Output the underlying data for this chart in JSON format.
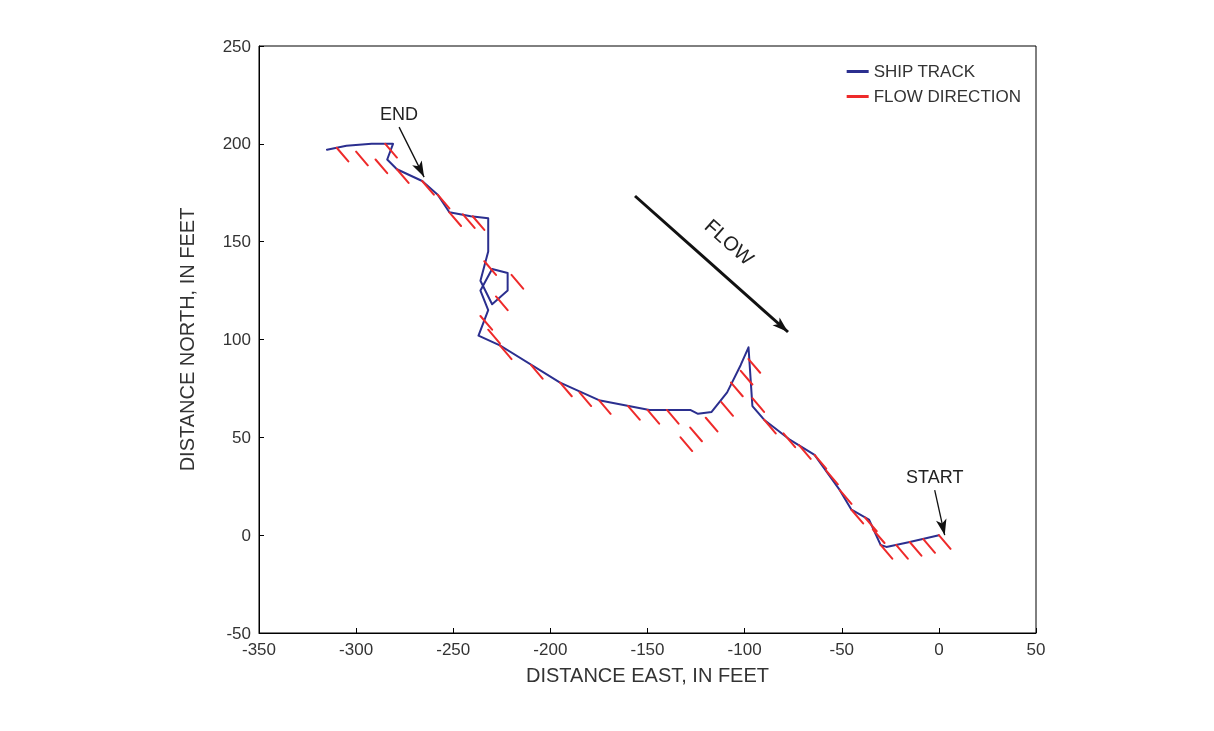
{
  "chart_data": {
    "type": "line",
    "xlabel": "DISTANCE EAST, IN FEET",
    "ylabel": "DISTANCE NORTH, IN FEET",
    "xlim": [
      -350,
      50
    ],
    "xticks": [
      -350,
      -300,
      -250,
      -200,
      -150,
      -100,
      -50,
      0,
      50
    ],
    "ylim": [
      -50,
      250
    ],
    "yticks": [
      -50,
      0,
      50,
      100,
      150,
      200,
      250
    ],
    "grid": false,
    "legend": "top right",
    "marker": "none",
    "line_style": "solid",
    "series": [
      {
        "name": "SHIP TRACK",
        "color": "#2b2f8f",
        "x": [
          0,
          -15,
          -27,
          -30,
          -36,
          -45,
          -51,
          -64,
          -77,
          -90,
          -96,
          -98,
          -102,
          -109,
          -117,
          -124,
          -128,
          -149,
          -175,
          -195,
          -226,
          -237,
          -232,
          -236,
          -230,
          -222,
          -222,
          -230,
          -236,
          -232,
          -232,
          -241,
          -252,
          -258,
          -266,
          -279,
          -284,
          -281,
          -292,
          -305,
          -315
        ],
        "values": [
          0,
          -3.5,
          -6,
          -5,
          8,
          13,
          23,
          41,
          49,
          59,
          66,
          96,
          87,
          73,
          63,
          62,
          64,
          64,
          69,
          78,
          97,
          102,
          115,
          125,
          136,
          134,
          125,
          118,
          130,
          145,
          162,
          163,
          165,
          174,
          181,
          187,
          192,
          200,
          200,
          199,
          197
        ]
      },
      {
        "name": "FLOW DIRECTION",
        "color": "#ee2a2a",
        "x": [
          0,
          6,
          null,
          -8,
          -2,
          null,
          -15,
          -9,
          null,
          -22,
          -16,
          null,
          -30,
          -24,
          null,
          -34,
          -28,
          null,
          -38,
          -32,
          null,
          -45,
          -39,
          null,
          -51,
          -45,
          null,
          -58,
          -52,
          null,
          -64,
          -58,
          null,
          -72,
          -66,
          null,
          -80,
          -74,
          null,
          -90,
          -84,
          null,
          -96,
          -90,
          null,
          -98,
          -92,
          null,
          -102,
          -96,
          null,
          -107,
          -101,
          null,
          -112,
          -106,
          null,
          -120,
          -114,
          null,
          -128,
          -122,
          null,
          -133,
          -127,
          null,
          -140,
          -134,
          null,
          -150,
          -144,
          null,
          -160,
          -154,
          null,
          -175,
          -169,
          null,
          -185,
          -179,
          null,
          -195,
          -189,
          null,
          -210,
          -204,
          null,
          -226,
          -220,
          null,
          -232,
          -226,
          null,
          -236,
          -230,
          null,
          -228,
          -222,
          null,
          -220,
          -214,
          null,
          -234,
          -228,
          null,
          -245,
          -239,
          null,
          -240,
          -234,
          null,
          -252,
          -246,
          null,
          -258,
          -252,
          null,
          -266,
          -260,
          null,
          -279,
          -273,
          null,
          -290,
          -284,
          null,
          -300,
          -294,
          null,
          -310,
          -304,
          null,
          -285,
          -279,
          null
        ],
        "values": [
          0,
          -7,
          null,
          -2,
          -9,
          null,
          -3.5,
          -10.5,
          null,
          -5,
          -12,
          null,
          -5,
          -12,
          null,
          3,
          -4,
          null,
          9,
          2,
          null,
          13,
          6,
          null,
          23,
          16,
          null,
          33,
          26,
          null,
          41,
          34,
          null,
          46,
          39,
          null,
          52,
          45,
          null,
          59,
          52,
          null,
          70,
          63,
          null,
          90,
          83,
          null,
          84,
          77,
          null,
          78,
          71,
          null,
          68,
          61,
          null,
          60,
          53,
          null,
          55,
          48,
          null,
          50,
          43,
          null,
          64,
          57,
          null,
          64,
          57,
          null,
          66,
          59,
          null,
          69,
          62,
          null,
          73,
          66,
          null,
          78,
          71,
          null,
          87,
          80,
          null,
          97,
          90,
          null,
          105,
          98,
          null,
          112,
          105,
          null,
          122,
          115,
          null,
          133,
          126,
          null,
          140,
          133,
          null,
          164,
          157,
          null,
          163,
          156,
          null,
          165,
          158,
          null,
          174,
          167,
          null,
          181,
          174,
          null,
          187,
          180,
          null,
          192,
          185,
          null,
          196,
          189,
          null,
          198,
          191,
          null,
          200,
          193,
          null
        ]
      }
    ],
    "annotations": [
      {
        "text": "END",
        "x": -265,
        "y": 183
      },
      {
        "text": "START",
        "x": 3,
        "y": 0
      },
      "FLOW"
    ]
  }
}
